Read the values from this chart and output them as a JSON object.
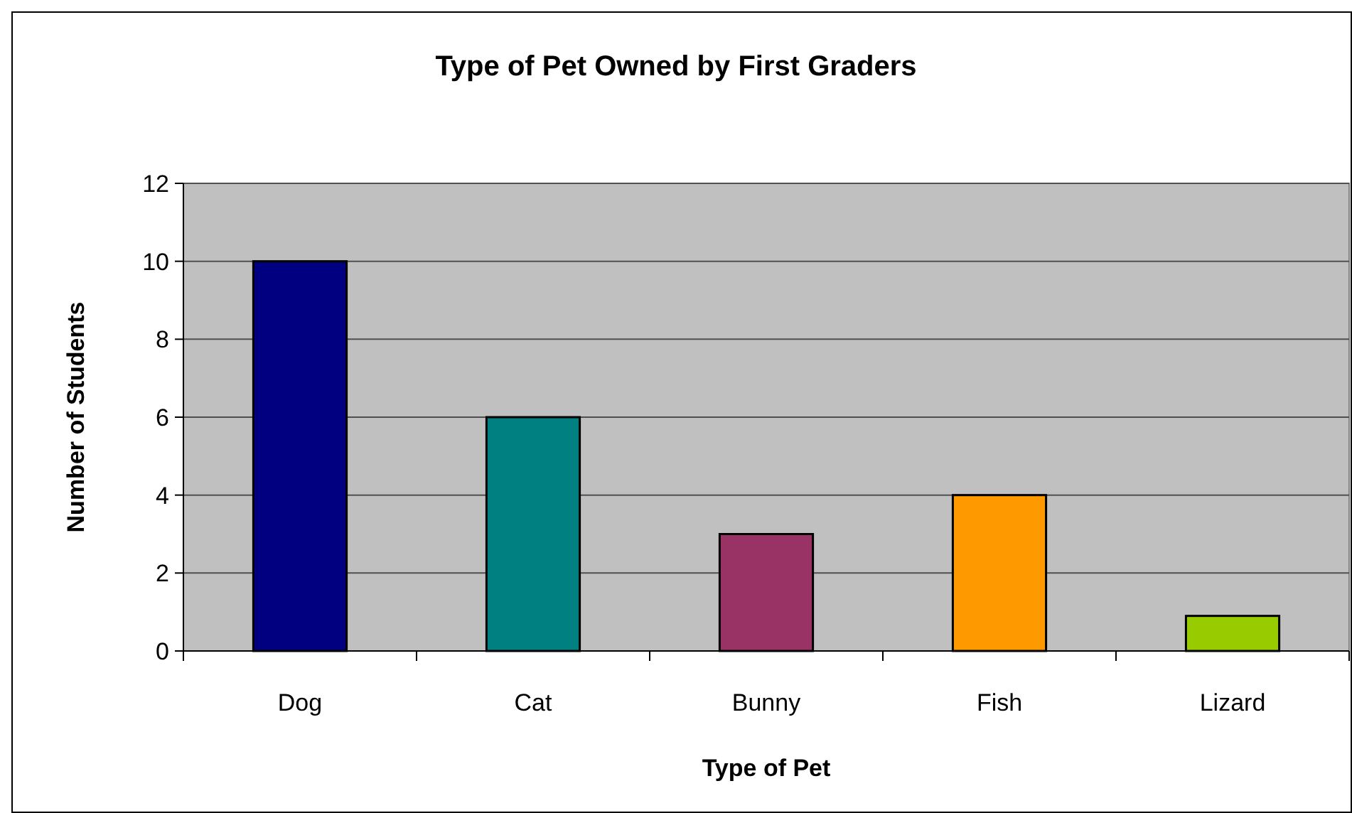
{
  "chart_data": {
    "type": "bar",
    "title": "Type of Pet Owned by First Graders",
    "xlabel": "Type of Pet",
    "ylabel": "Number of Students",
    "categories": [
      "Dog",
      "Cat",
      "Bunny",
      "Fish",
      "Lizard"
    ],
    "values": [
      10,
      6,
      3,
      4,
      0.9
    ],
    "colors": [
      "#000080",
      "#008080",
      "#993366",
      "#ff9900",
      "#99cc00"
    ],
    "ylim": [
      0,
      12
    ],
    "yticks": [
      0,
      2,
      4,
      6,
      8,
      10,
      12
    ],
    "grid": "y"
  }
}
